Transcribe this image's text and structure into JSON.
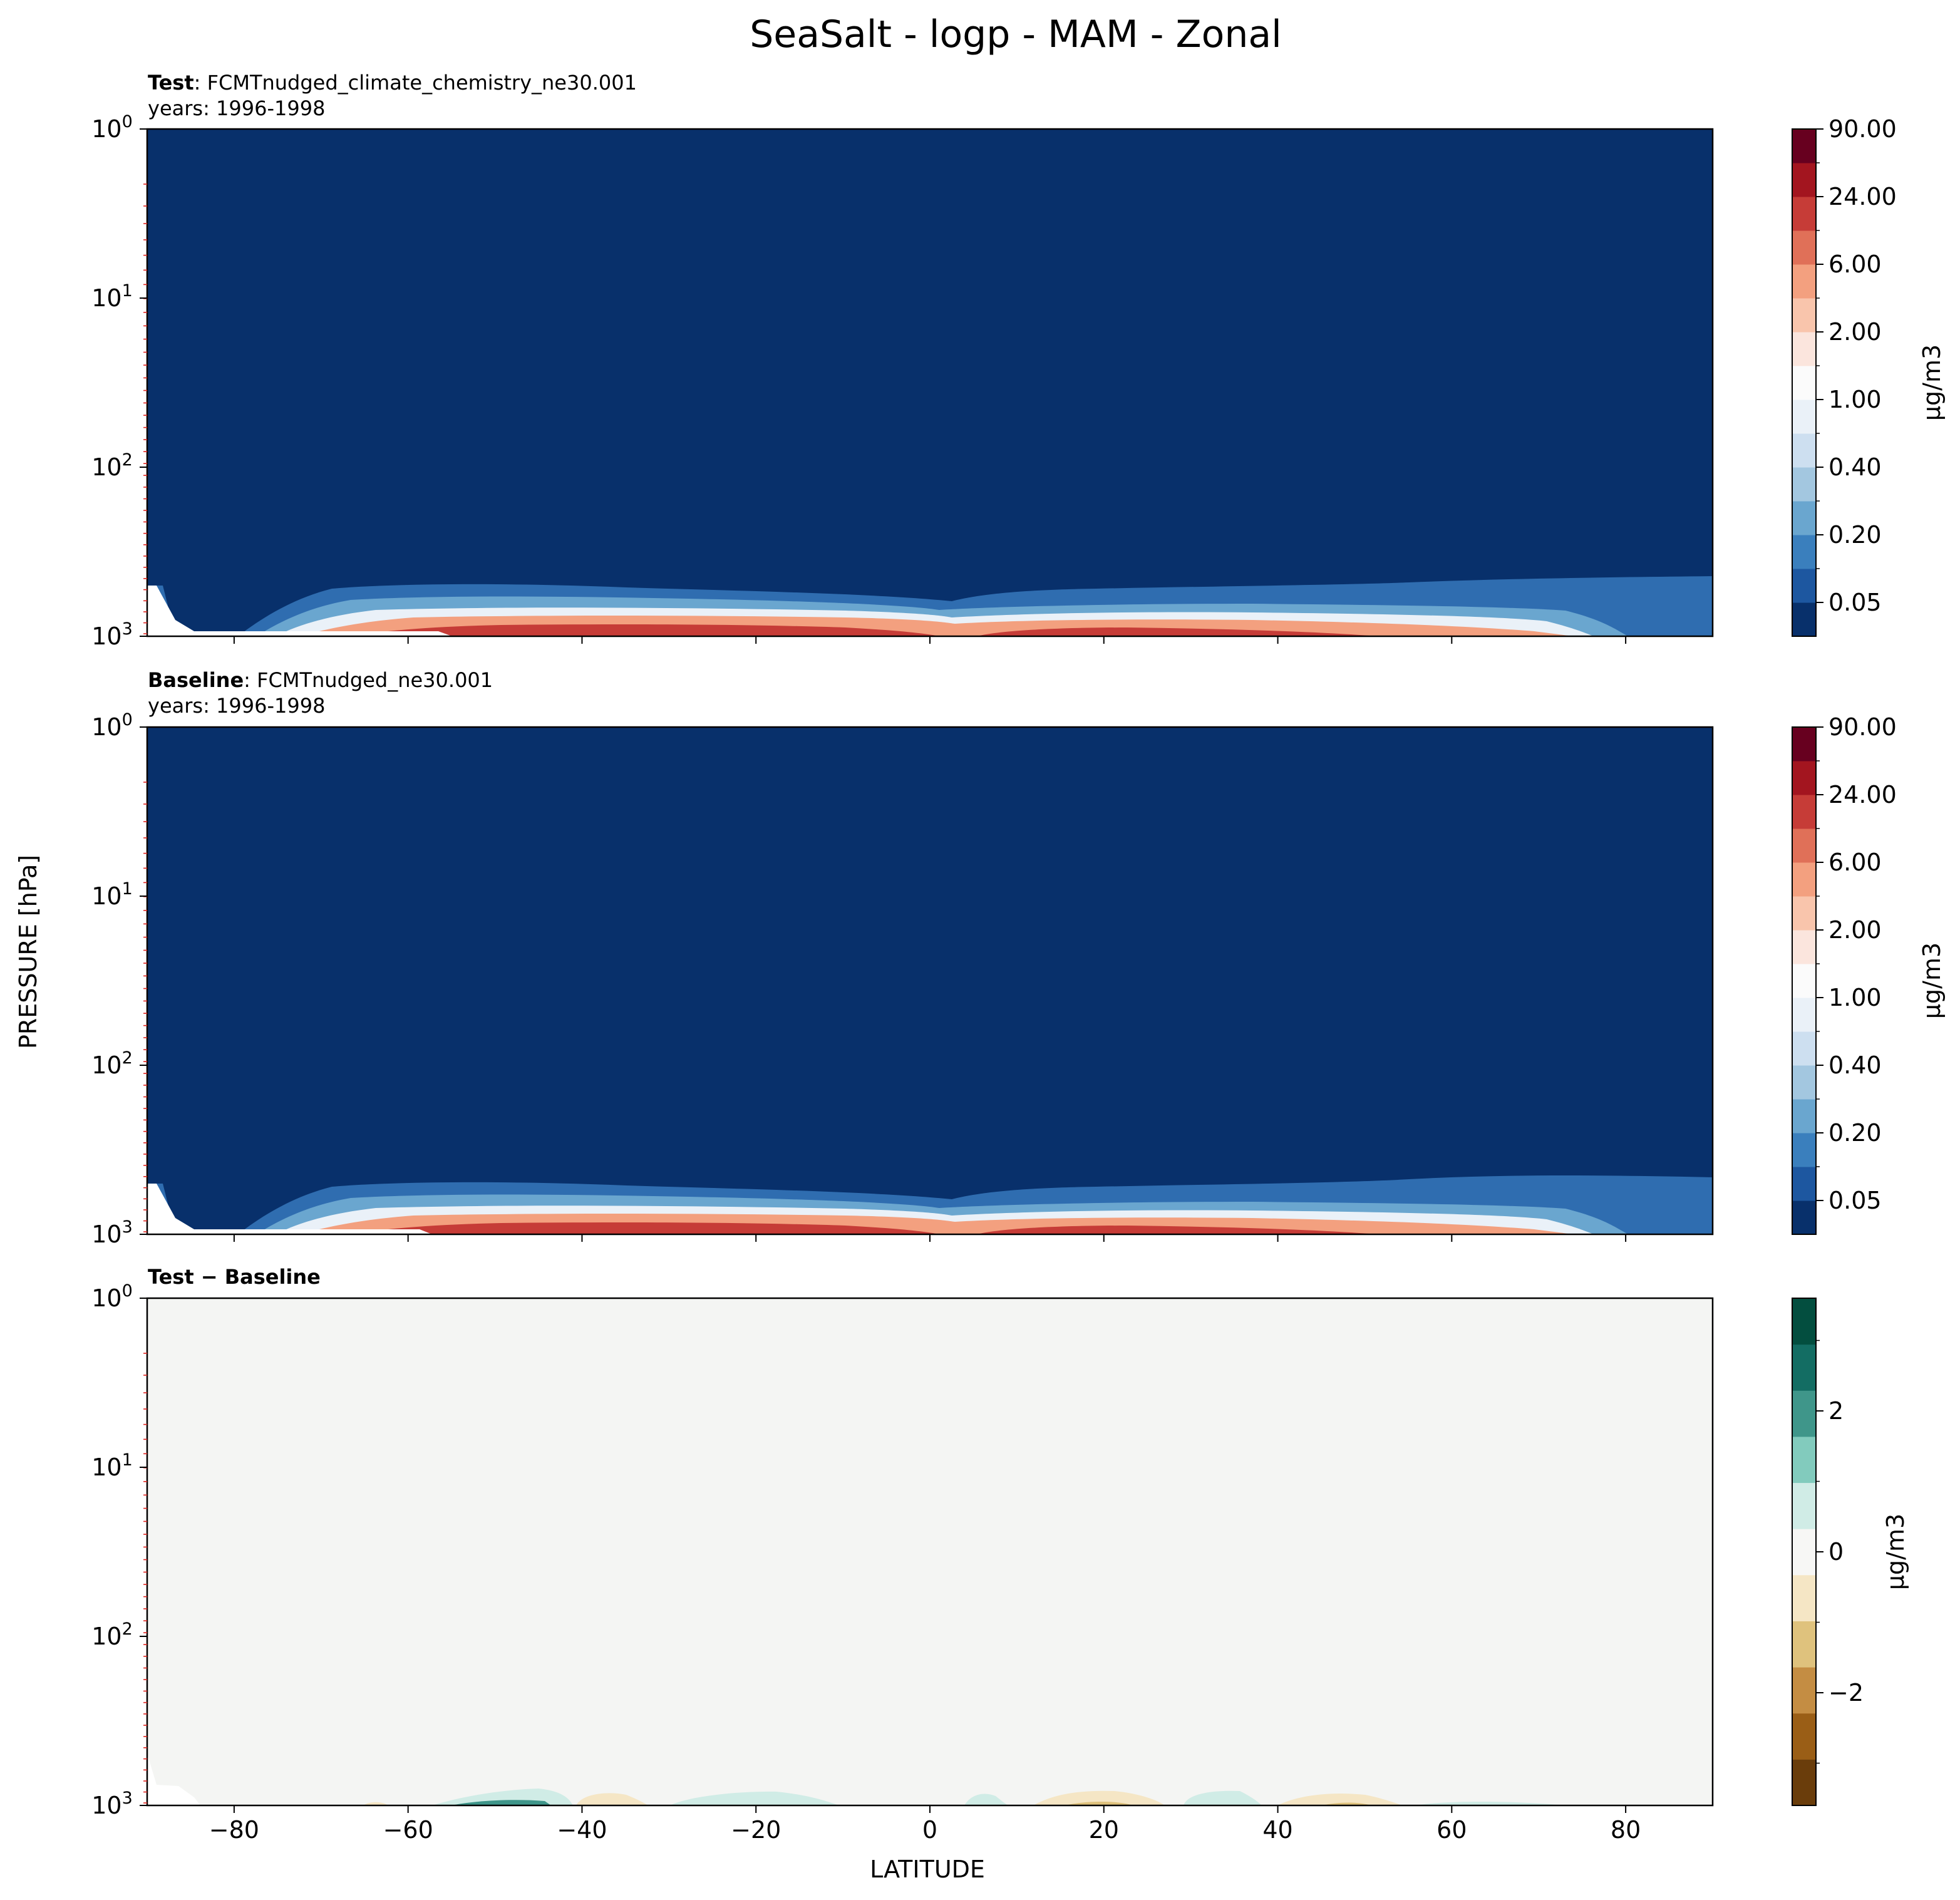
{
  "figure": {
    "title": "SeaSalt - logp - MAM - Zonal",
    "ylabel": "PRESSURE [hPa]",
    "xlabel": "LATITUDE"
  },
  "chart_data": [
    {
      "type": "heatmap",
      "title_bold": "Test",
      "title_rest": ": FCMTnudged_climate_chemistry_ne30.001",
      "subtitle": "years: 1996-1998",
      "xlim": [
        -90,
        90
      ],
      "ylim": [
        1000,
        1
      ],
      "yscale": "log",
      "colormap": "RdBu_r",
      "colorbar": {
        "label": "µg/m3",
        "tick_labels": [
          "0.05",
          "0.20",
          "0.40",
          "1.00",
          "2.00",
          "6.00",
          "24.00",
          "90.00"
        ],
        "colors": [
          "#08306b",
          "#1d57a0",
          "#3a7fbd",
          "#6aa6cf",
          "#a3c7e0",
          "#cddff0",
          "#eaf1f8",
          "#fbfbfb",
          "#fbe5dd",
          "#f9c5ac",
          "#f3a07f",
          "#e07058",
          "#c63c37",
          "#a3151f",
          "#67001f"
        ]
      }
    },
    {
      "type": "heatmap",
      "title_bold": "Baseline",
      "title_rest": ": FCMTnudged_ne30.001",
      "subtitle": "years: 1996-1998",
      "xlim": [
        -90,
        90
      ],
      "ylim": [
        1000,
        1
      ],
      "yscale": "log",
      "colormap": "RdBu_r",
      "colorbar": {
        "label": "µg/m3",
        "tick_labels": [
          "0.05",
          "0.20",
          "0.40",
          "1.00",
          "2.00",
          "6.00",
          "24.00",
          "90.00"
        ],
        "colors": [
          "#08306b",
          "#1d57a0",
          "#3a7fbd",
          "#6aa6cf",
          "#a3c7e0",
          "#cddff0",
          "#eaf1f8",
          "#fbfbfb",
          "#fbe5dd",
          "#f9c5ac",
          "#f3a07f",
          "#e07058",
          "#c63c37",
          "#a3151f",
          "#67001f"
        ]
      }
    },
    {
      "type": "heatmap",
      "title_bold": "Test − Baseline",
      "title_rest": "",
      "subtitle": "",
      "xlim": [
        -90,
        90
      ],
      "ylim": [
        1000,
        1
      ],
      "yscale": "log",
      "colormap": "BrBG",
      "colorbar": {
        "label": "µg/m3",
        "tick_labels": [
          "−2",
          "0",
          "2"
        ],
        "tick_values": [
          -2,
          0,
          2
        ],
        "range": [
          -3.6,
          3.6
        ],
        "colors": [
          "#6a3d0b",
          "#9a5e16",
          "#c48d43",
          "#dfc27d",
          "#f5e6c5",
          "#f7f7f5",
          "#d0ece6",
          "#82cbbd",
          "#3f968a",
          "#136d63",
          "#034e3f"
        ]
      }
    }
  ],
  "axes": {
    "x_ticks": [
      "−80",
      "−60",
      "−40",
      "−20",
      "0",
      "20",
      "40",
      "60",
      "80"
    ],
    "x_values": [
      -80,
      -60,
      -40,
      -20,
      0,
      20,
      40,
      60,
      80
    ],
    "y_ticks": [
      {
        "base": "10",
        "exp": "0"
      },
      {
        "base": "10",
        "exp": "1"
      },
      {
        "base": "10",
        "exp": "2"
      },
      {
        "base": "10",
        "exp": "3"
      }
    ],
    "y_values": [
      1,
      10,
      100,
      1000
    ]
  }
}
